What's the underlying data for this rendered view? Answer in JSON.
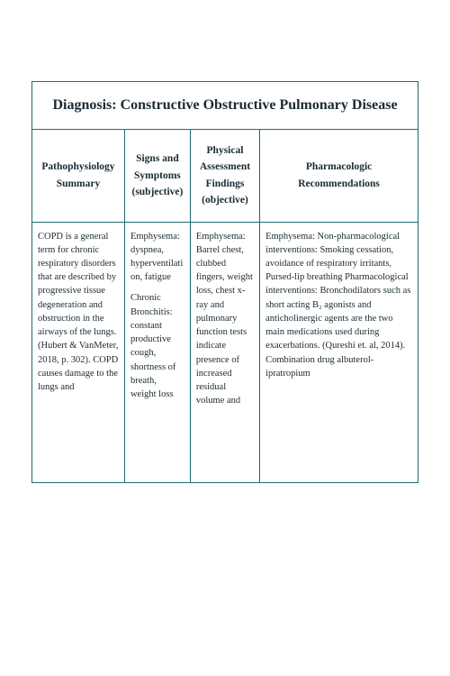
{
  "colors": {
    "border": "#1a6d6d",
    "text": "#1a2a33",
    "background": "#ffffff"
  },
  "title": "Diagnosis: Constructive Obstructive Pulmonary Disease",
  "columns": {
    "c1": "Pathophysiology Summary",
    "c2": "Signs and Symptoms (subjective)",
    "c3": "Physical Assessment Findings (objective)",
    "c4": "Pharmacologic Recommendations"
  },
  "rows": {
    "c1": " COPD is a general term for chronic respiratory disorders that are described by progressive tissue degeneration and obstruction in the airways of the lungs. (Hubert & VanMeter, 2018, p. 302).  COPD causes damage to the lungs and",
    "c2_a": "Emphysema: dyspnea, hyperventilation, fatigue",
    "c2_b": "Chronic Bronchitis: constant productive cough, shortness of breath, weight loss",
    "c3": "Emphysema: Barrel chest, clubbed fingers, weight loss, chest x-ray and pulmonary function tests indicate presence of increased residual volume and",
    "c4": "  Emphysema: Non-pharmacological interventions: Smoking cessation, avoidance of respiratory irritants, Pursed-lip breathing Pharmacological interventions: Bronchodilators such as short acting B₂ agonists and anticholinergic agents are the two main medications used during exacerbations. (Qureshi et. al, 2014). Combination drug albuterol-ipratropium"
  }
}
